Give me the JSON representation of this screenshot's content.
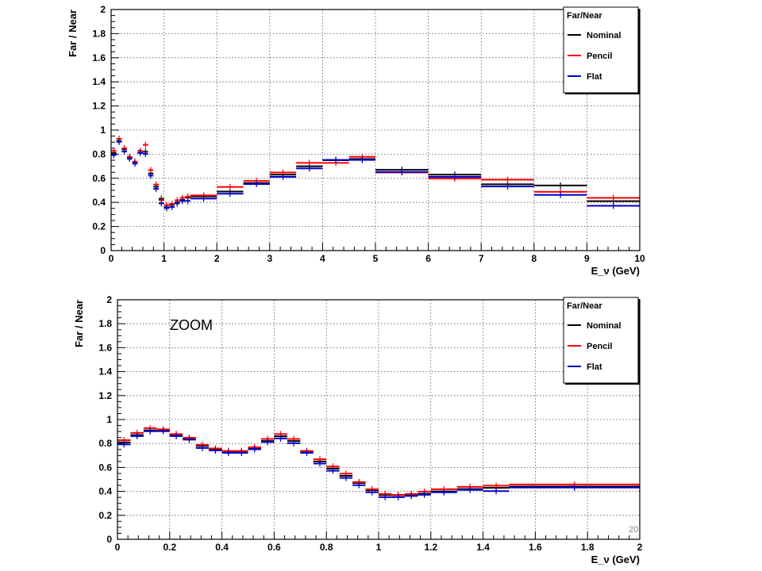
{
  "slide_number": "20",
  "chart_data": [
    {
      "type": "line",
      "title": "",
      "xlabel": "E_ν (GeV)",
      "ylabel": "Far / Near",
      "xlim": [
        0,
        10
      ],
      "ylim": [
        0,
        2
      ],
      "xticks": [
        "0",
        "1",
        "2",
        "3",
        "4",
        "5",
        "6",
        "7",
        "8",
        "9",
        "10"
      ],
      "yticks": [
        "0",
        "0.2",
        "0.4",
        "0.6",
        "0.8",
        "1",
        "1.2",
        "1.4",
        "1.6",
        "1.8",
        "2"
      ],
      "grid": true,
      "legend": {
        "title": "Far/Near",
        "position": "top-right"
      },
      "series": [
        {
          "name": "Nominal",
          "color": "#000000",
          "bins": [
            [
              0,
              0.1,
              0.81
            ],
            [
              0.1,
              0.2,
              0.91
            ],
            [
              0.2,
              0.3,
              0.84
            ],
            [
              0.3,
              0.4,
              0.77
            ],
            [
              0.4,
              0.5,
              0.73
            ],
            [
              0.5,
              0.6,
              0.81
            ],
            [
              0.6,
              0.7,
              0.82
            ],
            [
              0.7,
              0.8,
              0.64
            ],
            [
              0.8,
              0.9,
              0.53
            ],
            [
              0.9,
              1.0,
              0.43
            ],
            [
              1.0,
              1.1,
              0.36
            ],
            [
              1.1,
              1.2,
              0.38
            ],
            [
              1.2,
              1.3,
              0.4
            ],
            [
              1.3,
              1.4,
              0.42
            ],
            [
              1.4,
              1.5,
              0.44
            ],
            [
              1.5,
              2.0,
              0.45
            ],
            [
              2.0,
              2.5,
              0.49
            ],
            [
              2.5,
              3.0,
              0.56
            ],
            [
              3.0,
              3.5,
              0.63
            ],
            [
              3.5,
              4.0,
              0.7
            ],
            [
              4.0,
              4.5,
              0.75
            ],
            [
              4.5,
              5.0,
              0.76
            ],
            [
              5.0,
              6.0,
              0.67
            ],
            [
              6.0,
              7.0,
              0.63
            ],
            [
              7.0,
              8.0,
              0.55
            ],
            [
              8.0,
              9.0,
              0.54
            ],
            [
              9.0,
              10.0,
              0.41
            ]
          ]
        },
        {
          "name": "Pencil",
          "color": "#ff0000",
          "bins": [
            [
              0,
              0.1,
              0.82
            ],
            [
              0.1,
              0.2,
              0.92
            ],
            [
              0.2,
              0.3,
              0.84
            ],
            [
              0.3,
              0.4,
              0.77
            ],
            [
              0.4,
              0.5,
              0.73
            ],
            [
              0.5,
              0.6,
              0.82
            ],
            [
              0.6,
              0.7,
              0.87
            ],
            [
              0.7,
              0.8,
              0.66
            ],
            [
              0.8,
              0.9,
              0.54
            ],
            [
              0.9,
              1.0,
              0.41
            ],
            [
              1.0,
              1.1,
              0.37
            ],
            [
              1.1,
              1.2,
              0.38
            ],
            [
              1.2,
              1.3,
              0.41
            ],
            [
              1.3,
              1.4,
              0.43
            ],
            [
              1.4,
              1.5,
              0.44
            ],
            [
              1.5,
              2.0,
              0.45
            ],
            [
              2.0,
              2.5,
              0.52
            ],
            [
              2.5,
              3.0,
              0.57
            ],
            [
              3.0,
              3.5,
              0.64
            ],
            [
              3.5,
              4.0,
              0.72
            ],
            [
              4.0,
              4.5,
              0.72
            ],
            [
              4.5,
              5.0,
              0.77
            ],
            [
              5.0,
              6.0,
              0.64
            ],
            [
              6.0,
              7.0,
              0.59
            ],
            [
              7.0,
              8.0,
              0.58
            ],
            [
              8.0,
              9.0,
              0.48
            ],
            [
              9.0,
              10.0,
              0.43
            ]
          ]
        },
        {
          "name": "Flat",
          "color": "#0000cc",
          "bins": [
            [
              0,
              0.1,
              0.8
            ],
            [
              0.1,
              0.2,
              0.91
            ],
            [
              0.2,
              0.3,
              0.83
            ],
            [
              0.3,
              0.4,
              0.77
            ],
            [
              0.4,
              0.5,
              0.73
            ],
            [
              0.5,
              0.6,
              0.82
            ],
            [
              0.6,
              0.7,
              0.81
            ],
            [
              0.7,
              0.8,
              0.63
            ],
            [
              0.8,
              0.9,
              0.52
            ],
            [
              0.9,
              1.0,
              0.4
            ],
            [
              1.0,
              1.1,
              0.36
            ],
            [
              1.1,
              1.2,
              0.37
            ],
            [
              1.2,
              1.3,
              0.4
            ],
            [
              1.3,
              1.4,
              0.42
            ],
            [
              1.4,
              1.5,
              0.42
            ],
            [
              1.5,
              2.0,
              0.44
            ],
            [
              2.0,
              2.5,
              0.48
            ],
            [
              2.5,
              3.0,
              0.56
            ],
            [
              3.0,
              3.5,
              0.62
            ],
            [
              3.5,
              4.0,
              0.69
            ],
            [
              4.0,
              4.5,
              0.76
            ],
            [
              4.5,
              5.0,
              0.76
            ],
            [
              5.0,
              6.0,
              0.66
            ],
            [
              6.0,
              7.0,
              0.62
            ],
            [
              7.0,
              8.0,
              0.54
            ],
            [
              8.0,
              9.0,
              0.47
            ],
            [
              9.0,
              10.0,
              0.38
            ]
          ]
        }
      ]
    },
    {
      "type": "line",
      "title": "",
      "annotation": "ZOOM",
      "xlabel": "E_ν (GeV)",
      "ylabel": "Far / Near",
      "xlim": [
        0,
        2
      ],
      "ylim": [
        0,
        2
      ],
      "xticks": [
        "0",
        "0.2",
        "0.4",
        "0.6",
        "0.8",
        "1",
        "1.2",
        "1.4",
        "1.6",
        "1.8",
        "2"
      ],
      "yticks": [
        "0",
        "0.2",
        "0.4",
        "0.6",
        "0.8",
        "1",
        "1.2",
        "1.4",
        "1.6",
        "1.8",
        "2"
      ],
      "grid": true,
      "legend": {
        "title": "Far/Near",
        "position": "top-right"
      },
      "series": [
        {
          "name": "Nominal",
          "color": "#000000",
          "bins": [
            [
              0,
              0.05,
              0.81
            ],
            [
              0.05,
              0.1,
              0.87
            ],
            [
              0.1,
              0.15,
              0.91
            ],
            [
              0.15,
              0.2,
              0.91
            ],
            [
              0.2,
              0.25,
              0.87
            ],
            [
              0.25,
              0.3,
              0.84
            ],
            [
              0.3,
              0.35,
              0.78
            ],
            [
              0.35,
              0.4,
              0.75
            ],
            [
              0.4,
              0.45,
              0.73
            ],
            [
              0.45,
              0.5,
              0.73
            ],
            [
              0.5,
              0.55,
              0.76
            ],
            [
              0.55,
              0.6,
              0.82
            ],
            [
              0.6,
              0.65,
              0.86
            ],
            [
              0.65,
              0.7,
              0.82
            ],
            [
              0.7,
              0.75,
              0.73
            ],
            [
              0.75,
              0.8,
              0.65
            ],
            [
              0.8,
              0.85,
              0.59
            ],
            [
              0.85,
              0.9,
              0.53
            ],
            [
              0.9,
              0.95,
              0.47
            ],
            [
              0.95,
              1.0,
              0.41
            ],
            [
              1.0,
              1.05,
              0.37
            ],
            [
              1.05,
              1.1,
              0.37
            ],
            [
              1.1,
              1.15,
              0.37
            ],
            [
              1.15,
              1.2,
              0.38
            ],
            [
              1.2,
              1.3,
              0.4
            ],
            [
              1.3,
              1.4,
              0.42
            ],
            [
              1.4,
              1.5,
              0.43
            ],
            [
              1.5,
              2.0,
              0.44
            ]
          ]
        },
        {
          "name": "Pencil",
          "color": "#ff0000",
          "bins": [
            [
              0,
              0.05,
              0.82
            ],
            [
              0.05,
              0.1,
              0.88
            ],
            [
              0.1,
              0.15,
              0.92
            ],
            [
              0.15,
              0.2,
              0.91
            ],
            [
              0.2,
              0.25,
              0.87
            ],
            [
              0.25,
              0.3,
              0.84
            ],
            [
              0.3,
              0.35,
              0.78
            ],
            [
              0.35,
              0.4,
              0.75
            ],
            [
              0.4,
              0.45,
              0.73
            ],
            [
              0.45,
              0.5,
              0.73
            ],
            [
              0.5,
              0.55,
              0.76
            ],
            [
              0.55,
              0.6,
              0.83
            ],
            [
              0.6,
              0.65,
              0.87
            ],
            [
              0.65,
              0.7,
              0.83
            ],
            [
              0.7,
              0.75,
              0.73
            ],
            [
              0.75,
              0.8,
              0.66
            ],
            [
              0.8,
              0.85,
              0.6
            ],
            [
              0.85,
              0.9,
              0.54
            ],
            [
              0.9,
              0.95,
              0.47
            ],
            [
              0.95,
              1.0,
              0.41
            ],
            [
              1.0,
              1.05,
              0.37
            ],
            [
              1.05,
              1.1,
              0.36
            ],
            [
              1.1,
              1.15,
              0.37
            ],
            [
              1.15,
              1.2,
              0.39
            ],
            [
              1.2,
              1.3,
              0.41
            ],
            [
              1.3,
              1.4,
              0.43
            ],
            [
              1.4,
              1.5,
              0.44
            ],
            [
              1.5,
              2.0,
              0.45
            ]
          ]
        },
        {
          "name": "Flat",
          "color": "#0000cc",
          "bins": [
            [
              0,
              0.05,
              0.8
            ],
            [
              0.05,
              0.1,
              0.87
            ],
            [
              0.1,
              0.15,
              0.91
            ],
            [
              0.15,
              0.2,
              0.91
            ],
            [
              0.2,
              0.25,
              0.87
            ],
            [
              0.25,
              0.3,
              0.84
            ],
            [
              0.3,
              0.35,
              0.77
            ],
            [
              0.35,
              0.4,
              0.75
            ],
            [
              0.4,
              0.45,
              0.73
            ],
            [
              0.45,
              0.5,
              0.73
            ],
            [
              0.5,
              0.55,
              0.76
            ],
            [
              0.55,
              0.6,
              0.82
            ],
            [
              0.6,
              0.65,
              0.85
            ],
            [
              0.65,
              0.7,
              0.81
            ],
            [
              0.7,
              0.75,
              0.73
            ],
            [
              0.75,
              0.8,
              0.64
            ],
            [
              0.8,
              0.85,
              0.58
            ],
            [
              0.85,
              0.9,
              0.52
            ],
            [
              0.9,
              0.95,
              0.46
            ],
            [
              0.95,
              1.0,
              0.4
            ],
            [
              1.0,
              1.05,
              0.36
            ],
            [
              1.05,
              1.1,
              0.36
            ],
            [
              1.1,
              1.15,
              0.37
            ],
            [
              1.15,
              1.2,
              0.38
            ],
            [
              1.2,
              1.3,
              0.4
            ],
            [
              1.3,
              1.4,
              0.42
            ],
            [
              1.4,
              1.5,
              0.41
            ],
            [
              1.5,
              2.0,
              0.44
            ]
          ]
        }
      ]
    }
  ]
}
